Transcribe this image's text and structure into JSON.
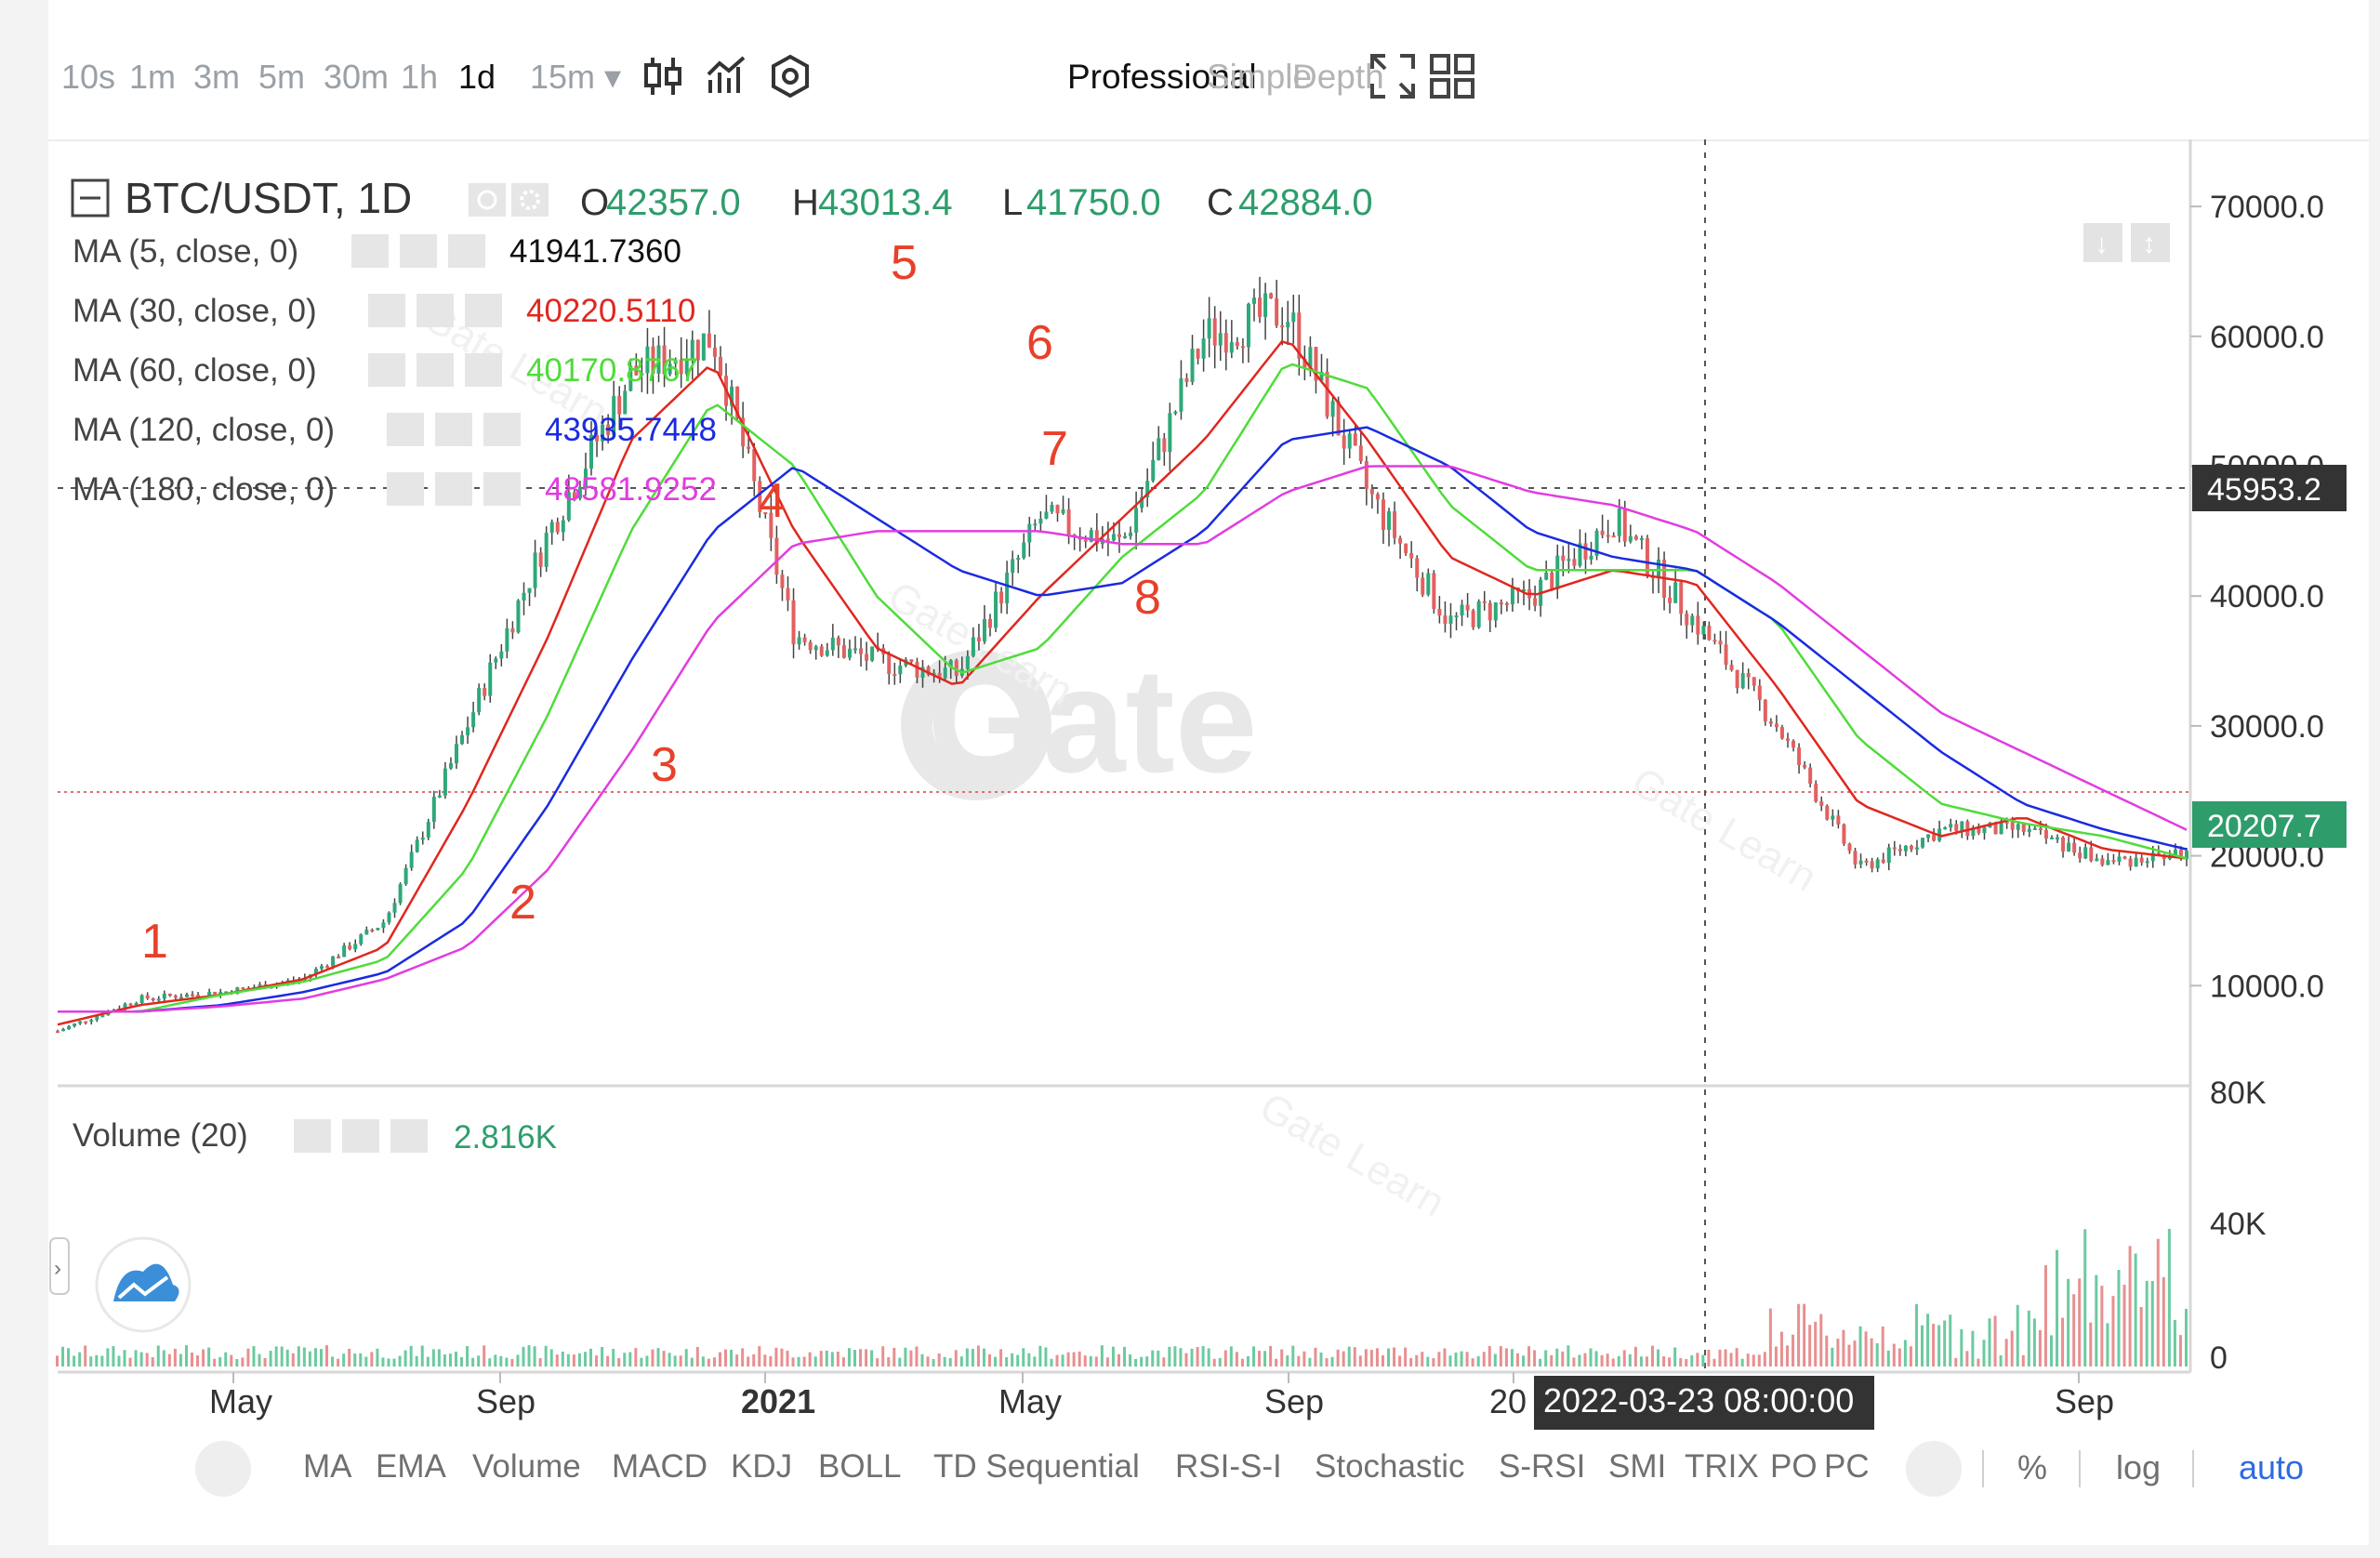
{
  "timeframes": [
    "10s",
    "1m",
    "3m",
    "5m",
    "30m",
    "1h",
    "1d",
    "15m ▾"
  ],
  "active_timeframe": "1d",
  "views": {
    "professional": "Professional",
    "simple": "Simple",
    "depth": "Depth"
  },
  "header": {
    "symbol": "BTC/USDT, 1D",
    "open_label": "O",
    "open": "42357.0",
    "high_label": "H",
    "high": "43013.4",
    "low_label": "L",
    "low": "41750.0",
    "close_label": "C",
    "close": "42884.0"
  },
  "ma_rows": [
    {
      "label": "MA (5, close, 0)",
      "value": "41941.7360",
      "color": "#111111"
    },
    {
      "label": "MA (30, close, 0)",
      "value": "40220.5110",
      "color": "#e0271e"
    },
    {
      "label": "MA (60, close, 0)",
      "value": "40170.8767",
      "color": "#4fdc3a"
    },
    {
      "label": "MA (120, close, 0)",
      "value": "43935.7448",
      "color": "#1a2be0"
    },
    {
      "label": "MA (180, close, 0)",
      "value": "48581.9252",
      "color": "#e23ce0"
    }
  ],
  "volume": {
    "label": "Volume (20)",
    "value": "2.816K"
  },
  "watermark": "Gate",
  "watermark_small": "Gate Learn",
  "crosshair": {
    "price": "45953.2",
    "date": "2022-03-23 08:00:00"
  },
  "last_price": "20207.7",
  "annotations": [
    "1",
    "2",
    "3",
    "4",
    "5",
    "6",
    "7",
    "8"
  ],
  "colors": {
    "up": "#2ea879",
    "down": "#e26060",
    "ma5": "#e0271e",
    "ma_dark": "#111111",
    "ma30": "#e0271e",
    "ma60": "#4fdc3a",
    "ma120": "#1a2be0",
    "ma180": "#e23ce0",
    "annotation": "#e8402a",
    "crosshair_bg": "#333333",
    "price_tag": "#2e9d6b"
  },
  "indicators": [
    "MA",
    "EMA",
    "Volume",
    "MACD",
    "KDJ",
    "BOLL",
    "TD Sequential",
    "RSI-S-I",
    "Stochastic",
    "S-RSI",
    "SMI",
    "TRIX",
    "PO",
    "PC"
  ],
  "scale_options": {
    "percent": "%",
    "log": "log",
    "auto": "auto"
  },
  "chart_data": {
    "type": "line",
    "title": "BTC/USDT, 1D",
    "x_tick_labels": [
      "May",
      "Sep",
      "2021",
      "May",
      "Sep",
      "20",
      "Sep"
    ],
    "price_axis_labels": [
      "70000.0",
      "60000.0",
      "50000.0",
      "40000.0",
      "30000.0",
      "20000.0",
      "10000.0"
    ],
    "volume_axis_labels": [
      "80K",
      "40K",
      "0"
    ],
    "ylim": [
      0,
      70000
    ],
    "x": [
      "2020-03",
      "2020-05",
      "2020-07",
      "2020-09",
      "2020-11",
      "2021-01",
      "2021-02",
      "2021-03",
      "2021-04",
      "2021-05",
      "2021-06",
      "2021-07",
      "2021-08",
      "2021-09",
      "2021-10",
      "2021-11",
      "2021-12",
      "2022-01",
      "2022-02",
      "2022-03",
      "2022-04",
      "2022-05",
      "2022-06",
      "2022-07",
      "2022-08",
      "2022-09",
      "2022-10"
    ],
    "series": [
      {
        "name": "BTC/USDT close",
        "values": [
          6500,
          9000,
          9500,
          10500,
          15000,
          30000,
          45000,
          57000,
          60000,
          37000,
          35000,
          34000,
          46000,
          44000,
          60000,
          62000,
          48000,
          38000,
          40000,
          46000,
          38000,
          30000,
          19000,
          22000,
          22000,
          19500,
          20200
        ]
      },
      {
        "name": "MA (30, close, 0)",
        "values": [
          7000,
          8500,
          9300,
          10500,
          13000,
          24000,
          37000,
          52000,
          58000,
          45000,
          36000,
          33000,
          40000,
          46000,
          52000,
          60000,
          52000,
          43000,
          40000,
          42000,
          41000,
          33000,
          24000,
          21500,
          23000,
          20500,
          19800
        ]
      },
      {
        "name": "MA (60, close, 0)",
        "values": [
          8000,
          8000,
          9300,
          10300,
          12000,
          19000,
          31000,
          45000,
          55000,
          50000,
          40000,
          34000,
          36000,
          43000,
          48000,
          58000,
          56000,
          47000,
          42000,
          42000,
          42000,
          38000,
          29000,
          24000,
          22500,
          21500,
          19800
        ]
      },
      {
        "name": "MA (120, close, 0)",
        "values": [
          8000,
          8000,
          8500,
          9500,
          11000,
          15000,
          24000,
          35000,
          45000,
          50000,
          46000,
          42000,
          40000,
          41000,
          45000,
          52000,
          53000,
          50000,
          45000,
          43000,
          42000,
          38000,
          33000,
          28000,
          24000,
          22000,
          20500
        ]
      },
      {
        "name": "MA (180, close, 0)",
        "values": [
          8000,
          8000,
          8400,
          9000,
          10500,
          13000,
          19000,
          28000,
          38000,
          44000,
          45000,
          45000,
          45000,
          44000,
          44000,
          48000,
          50000,
          50000,
          48000,
          47000,
          45000,
          41000,
          36000,
          31000,
          28000,
          25000,
          22000
        ]
      }
    ]
  }
}
